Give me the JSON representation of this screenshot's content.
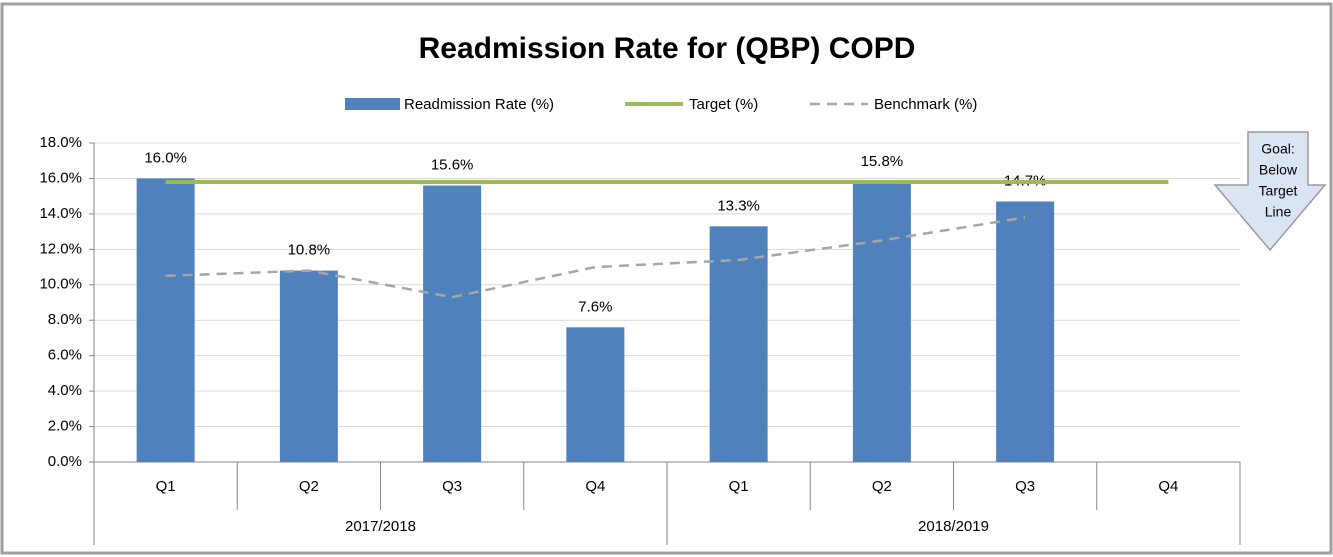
{
  "chart_data": {
    "type": "bar",
    "title": "Readmission Rate for (QBP) COPD",
    "categories": [
      "Q1",
      "Q2",
      "Q3",
      "Q4",
      "Q1",
      "Q2",
      "Q3",
      "Q4"
    ],
    "category_groups": [
      {
        "label": "2017/2018",
        "count": 4
      },
      {
        "label": "2018/2019",
        "count": 4
      }
    ],
    "series": [
      {
        "name": "Readmission Rate (%)",
        "type": "bar",
        "color": "#4f81bd",
        "values": [
          16.0,
          10.8,
          15.6,
          7.6,
          13.3,
          15.8,
          14.7,
          null
        ],
        "value_labels": [
          "16.0%",
          "10.8%",
          "15.6%",
          "7.6%",
          "13.3%",
          "15.8%",
          "14.7%",
          null
        ]
      },
      {
        "name": "Target (%)",
        "type": "line",
        "color": "#9bbb59",
        "dash": false,
        "values": [
          15.8,
          15.8,
          15.8,
          15.8,
          15.8,
          15.8,
          15.8,
          15.8
        ]
      },
      {
        "name": "Benchmark (%)",
        "type": "line",
        "color": "#a6a6a6",
        "dash": true,
        "values": [
          10.5,
          10.8,
          9.3,
          11.0,
          11.4,
          12.5,
          13.8,
          null
        ]
      }
    ],
    "ylim": [
      0,
      18
    ],
    "yticks": [
      {
        "value": 0,
        "label": "0.0%"
      },
      {
        "value": 2,
        "label": "2.0%"
      },
      {
        "value": 4,
        "label": "4.0%"
      },
      {
        "value": 6,
        "label": "6.0%"
      },
      {
        "value": 8,
        "label": "8.0%"
      },
      {
        "value": 10,
        "label": "10.0%"
      },
      {
        "value": 12,
        "label": "12.0%"
      },
      {
        "value": 14,
        "label": "14.0%"
      },
      {
        "value": 16,
        "label": "16.0%"
      },
      {
        "value": 18,
        "label": "18.0%"
      }
    ],
    "grid": true,
    "legend": "top",
    "annotation": [
      "Goal:",
      "Below",
      "Target",
      "Line"
    ]
  }
}
